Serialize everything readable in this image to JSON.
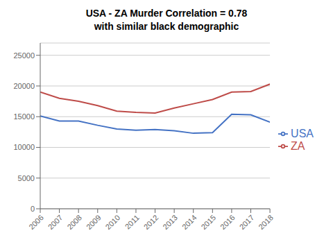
{
  "chart_data": {
    "type": "line",
    "title": "USA - ZA Murder Correlation = 0.78",
    "subtitle": "with similar black demographic",
    "x": [
      2006,
      2007,
      2008,
      2009,
      2010,
      2011,
      2012,
      2013,
      2014,
      2015,
      2016,
      2017,
      2018
    ],
    "series": [
      {
        "name": "USA",
        "color": "#4472C4",
        "values": [
          15100,
          14300,
          14300,
          13600,
          13000,
          12800,
          12900,
          12700,
          12300,
          12400,
          15400,
          15300,
          14100
        ]
      },
      {
        "name": "ZA",
        "color": "#BE4B48",
        "values": [
          19000,
          18000,
          17500,
          16800,
          15900,
          15700,
          15600,
          16400,
          17100,
          17800,
          19000,
          19100,
          20300
        ]
      }
    ],
    "xlim": [
      2006,
      2018
    ],
    "xticks": [
      2006,
      2007,
      2008,
      2009,
      2010,
      2011,
      2012,
      2013,
      2014,
      2015,
      2016,
      2017,
      2018
    ],
    "ylim": [
      0,
      27000
    ],
    "yticks": [
      0,
      5000,
      10000,
      15000,
      20000,
      25000
    ],
    "grid": true,
    "legend": "right"
  }
}
